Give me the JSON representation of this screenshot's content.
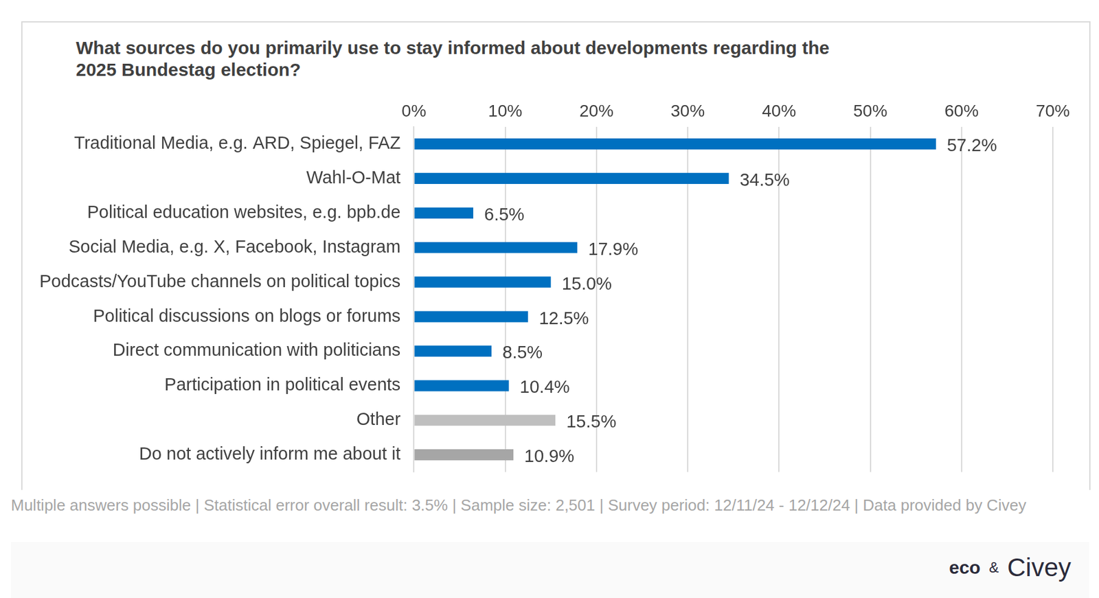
{
  "chart_data": {
    "type": "bar",
    "orientation": "horizontal",
    "title": "What sources do you primarily use to stay informed about developments regarding the 2025 Bundestag election?",
    "categories": [
      "Traditional Media, e.g. ARD, Spiegel, FAZ",
      "Wahl-O-Mat",
      "Political education websites, e.g. bpb.de",
      "Social Media, e.g. X, Facebook, Instagram",
      "Podcasts/YouTube channels on political topics",
      "Political discussions on blogs or forums",
      "Direct communication with politicians",
      "Participation in political events",
      "Other",
      "Do not actively inform me about it"
    ],
    "values": [
      57.2,
      34.5,
      6.5,
      17.9,
      15.0,
      12.5,
      8.5,
      10.4,
      15.5,
      10.9
    ],
    "value_labels": [
      "57.2%",
      "34.5%",
      "6.5%",
      "17.9%",
      "15.0%",
      "12.5%",
      "8.5%",
      "10.4%",
      "15.5%",
      "10.9%"
    ],
    "colors": [
      "#0070C0",
      "#0070C0",
      "#0070C0",
      "#0070C0",
      "#0070C0",
      "#0070C0",
      "#0070C0",
      "#0070C0",
      "#BFBFBF",
      "#A6A6A6"
    ],
    "xlim": [
      0,
      70
    ],
    "xticks": [
      {
        "value": 0,
        "label": "0%"
      },
      {
        "value": 10,
        "label": "10%"
      },
      {
        "value": 20,
        "label": "20%"
      },
      {
        "value": 30,
        "label": "30%"
      },
      {
        "value": 40,
        "label": "40%"
      },
      {
        "value": 50,
        "label": "50%"
      },
      {
        "value": 60,
        "label": "60%"
      },
      {
        "value": 70,
        "label": "70%"
      }
    ],
    "grid": true,
    "data_labels": true,
    "annotations": [
      "Multiple answers possible | Statistical error overall result: 3.5% | Sample size: 2,501 | Survey period: 12/11/24 - 12/12/24 | Data provided by Civey",
      "eco",
      "&",
      "Civey"
    ]
  }
}
